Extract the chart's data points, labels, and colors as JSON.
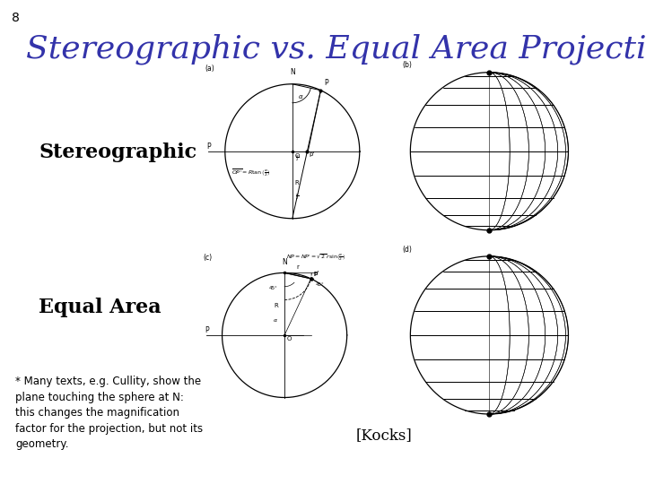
{
  "slide_number": "8",
  "title": "Stereographic vs. Equal Area Projection",
  "title_color": "#3333aa",
  "title_fontsize": 26,
  "title_style": "italic",
  "title_font": "serif",
  "label_stereo": "Stereographic",
  "label_equal": "Equal Area",
  "label_fontsize": 16,
  "label_font": "serif",
  "kocks_label": "[Kocks]",
  "footnote_text": "* Many texts, e.g. Cullity, show the\nplane touching the sphere at N:\nthis changes the magnification\nfactor for the projection, but not its\ngeometry.",
  "footnote_bg": "#ffdddd",
  "bg_color": "#ffffff"
}
